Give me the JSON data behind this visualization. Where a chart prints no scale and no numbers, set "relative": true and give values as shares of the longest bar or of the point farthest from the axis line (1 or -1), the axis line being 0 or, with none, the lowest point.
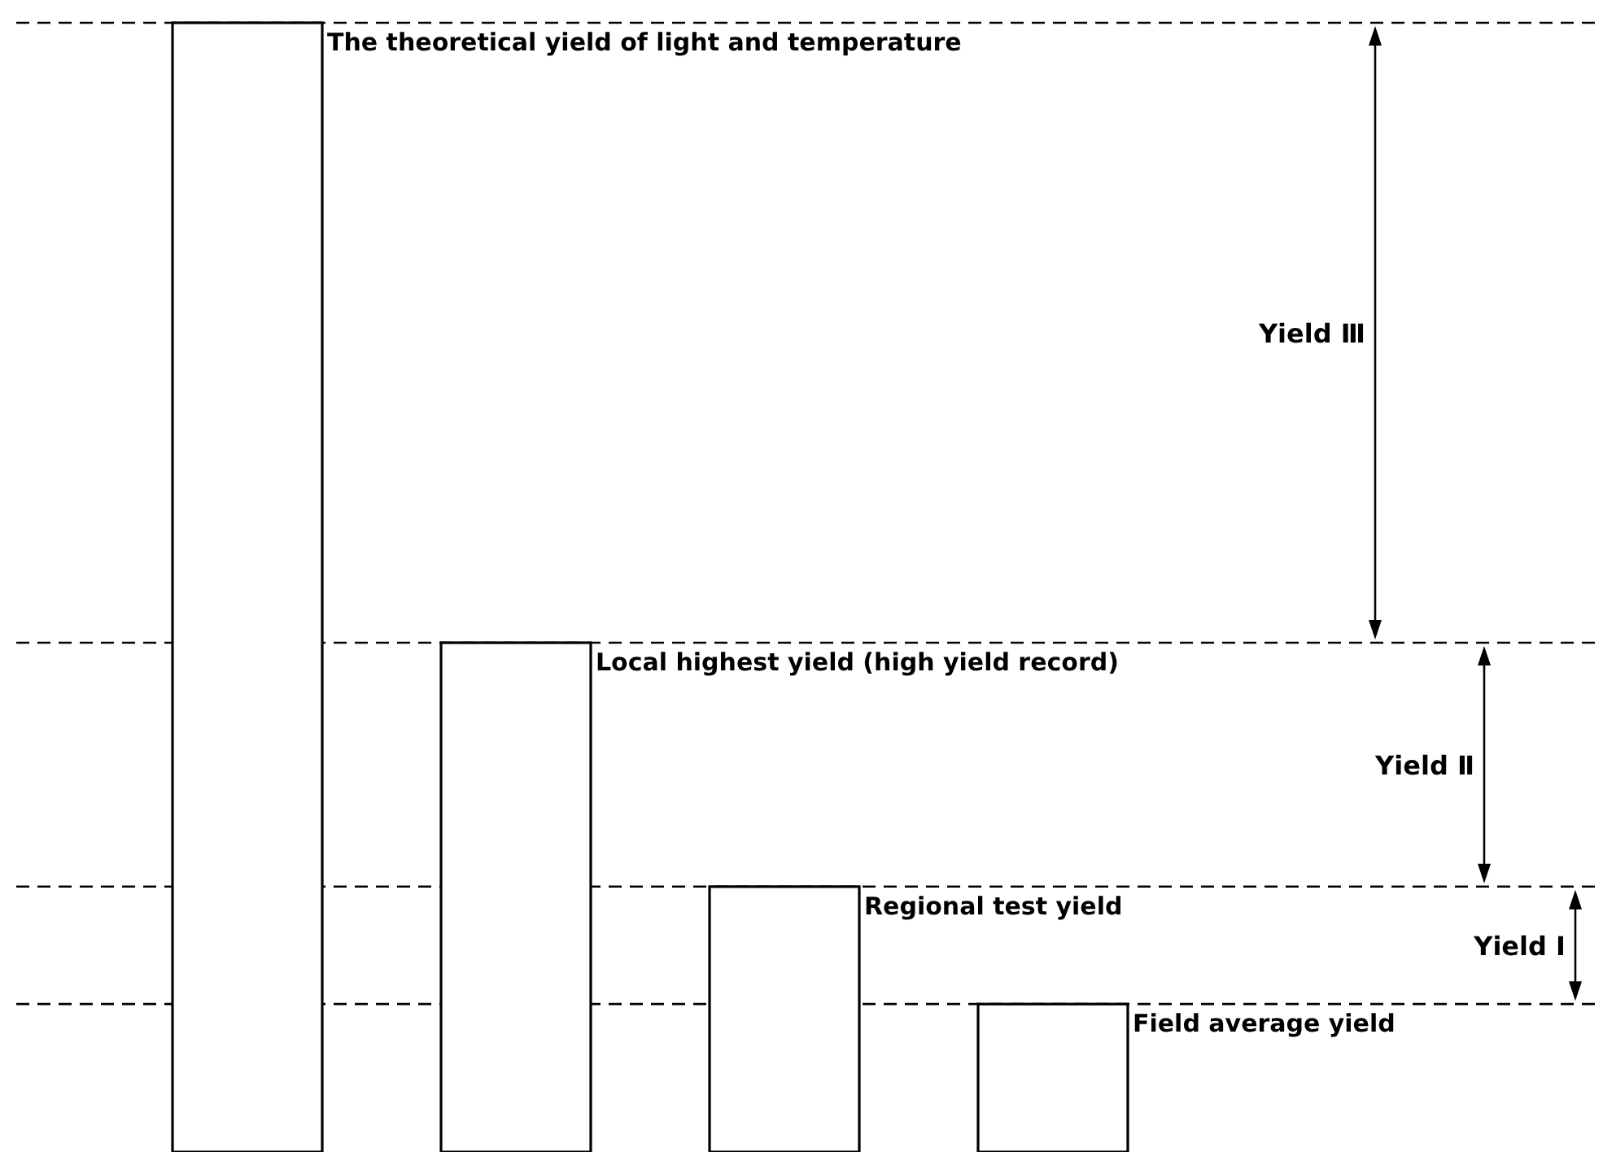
{
  "chart_data": {
    "type": "bar",
    "relative": true,
    "categories": [
      null,
      null,
      null,
      null
    ],
    "values": [
      1,
      0.451,
      0.235,
      0.131
    ],
    "color": "#ffffff",
    "ref_lines": [
      {
        "axis": "y",
        "value": 1
      },
      {
        "axis": "y",
        "value": 0.451
      },
      {
        "axis": "y",
        "value": 0.235
      },
      {
        "axis": "y",
        "value": 0.131
      }
    ],
    "line_style": "dashed",
    "annotations": [
      {
        "text": "The theoretical yield of light and temperature",
        "y": 1
      },
      {
        "text": "Local highest yield (high yield record)",
        "y": 0.451
      },
      {
        "text": "Regional test yield",
        "y": 0.235
      },
      {
        "text": "Field average yield",
        "y": 0.131
      },
      "Yield Ⅲ",
      "Yield Ⅱ",
      "Yield Ⅰ"
    ],
    "grid": false,
    "legend": false
  }
}
